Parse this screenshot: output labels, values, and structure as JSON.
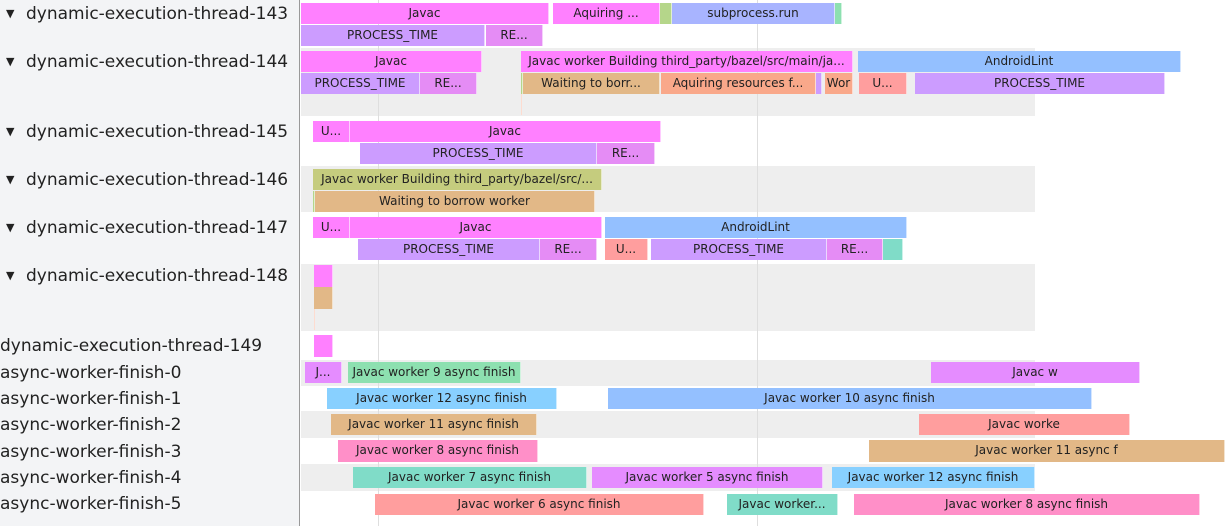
{
  "tracks": [
    {
      "label": "dynamic-execution-thread-143",
      "expandable": true
    },
    {
      "label": "dynamic-execution-thread-144",
      "expandable": true
    },
    {
      "label": "dynamic-execution-thread-145",
      "expandable": true
    },
    {
      "label": "dynamic-execution-thread-146",
      "expandable": true
    },
    {
      "label": "dynamic-execution-thread-147",
      "expandable": true
    },
    {
      "label": "dynamic-execution-thread-148",
      "expandable": true
    },
    {
      "label": "dynamic-execution-thread-149",
      "expandable": false
    },
    {
      "label": "async-worker-finish-0",
      "expandable": false
    },
    {
      "label": "async-worker-finish-1",
      "expandable": false
    },
    {
      "label": "async-worker-finish-2",
      "expandable": false
    },
    {
      "label": "async-worker-finish-3",
      "expandable": false
    },
    {
      "label": "async-worker-finish-4",
      "expandable": false
    },
    {
      "label": "async-worker-finish-5",
      "expandable": false
    }
  ],
  "expand_icon": "triangle-down-icon",
  "colors": {
    "pink": "#ff80ff",
    "purple": "#cc9cff",
    "magenta": "#e58cf5",
    "green": "#b5d68a",
    "blue": "#a8b4ff",
    "teal": "#8de0b0",
    "skyblue": "#94c0ff",
    "tan": "#e2b887",
    "salmon": "#f9a88a",
    "red": "#ff9e9e",
    "olive": "#c5cc7e",
    "cyan": "#80dcc8",
    "lightblue": "#88d0ff",
    "rose": "#ff8fc8",
    "violet": "#e58cff"
  },
  "slices": [
    {
      "label": "Javac",
      "color": "pink"
    },
    {
      "label": "Aquiring ...",
      "color": "pink"
    },
    {
      "label": "",
      "color": "green"
    },
    {
      "label": "subprocess.run",
      "color": "blue"
    },
    {
      "label": "",
      "color": "teal"
    },
    {
      "label": "PROCESS_TIME",
      "color": "purple"
    },
    {
      "label": "RE...",
      "color": "magenta"
    },
    {
      "label": "Javac",
      "color": "pink"
    },
    {
      "label": "Javac worker Building third_party/bazel/src/main/ja...",
      "color": "pink"
    },
    {
      "label": "AndroidLint",
      "color": "skyblue"
    },
    {
      "label": "PROCESS_TIME",
      "color": "purple"
    },
    {
      "label": "RE...",
      "color": "magenta"
    },
    {
      "label": "",
      "color": "green"
    },
    {
      "label": "Waiting to borr...",
      "color": "tan"
    },
    {
      "label": "Aquiring resources f...",
      "color": "salmon"
    },
    {
      "label": "",
      "color": "purple"
    },
    {
      "label": "Wor",
      "color": "salmon"
    },
    {
      "label": "U...",
      "color": "red"
    },
    {
      "label": "PROCESS_TIME",
      "color": "purple"
    },
    {
      "label": "",
      "color": "salmon"
    },
    {
      "label": "U...",
      "color": "pink"
    },
    {
      "label": "Javac",
      "color": "pink"
    },
    {
      "label": "PROCESS_TIME",
      "color": "purple"
    },
    {
      "label": "RE...",
      "color": "magenta"
    },
    {
      "label": "Javac worker Building third_party/bazel/src/...",
      "color": "olive"
    },
    {
      "label": "",
      "color": "green"
    },
    {
      "label": "Waiting to borrow worker",
      "color": "tan"
    },
    {
      "label": "U...",
      "color": "pink"
    },
    {
      "label": "Javac",
      "color": "pink"
    },
    {
      "label": "AndroidLint",
      "color": "skyblue"
    },
    {
      "label": "PROCESS_TIME",
      "color": "purple"
    },
    {
      "label": "RE...",
      "color": "magenta"
    },
    {
      "label": "U...",
      "color": "red"
    },
    {
      "label": "PROCESS_TIME",
      "color": "purple"
    },
    {
      "label": "RE...",
      "color": "magenta"
    },
    {
      "label": "",
      "color": "cyan"
    },
    {
      "label": "",
      "color": "pink"
    },
    {
      "label": "",
      "color": "tan"
    },
    {
      "label": "",
      "color": "salmon"
    },
    {
      "label": "",
      "color": "pink"
    },
    {
      "label": "J...",
      "color": "violet"
    },
    {
      "label": "Javac worker 9 async finish",
      "color": "teal"
    },
    {
      "label": "Javac w",
      "color": "violet"
    },
    {
      "label": "Javac worker 12 async finish",
      "color": "lightblue"
    },
    {
      "label": "Javac worker 10 async finish",
      "color": "skyblue"
    },
    {
      "label": "Javac worker 11 async finish",
      "color": "tan"
    },
    {
      "label": "Javac worke",
      "color": "red"
    },
    {
      "label": "Javac worker 8 async finish",
      "color": "rose"
    },
    {
      "label": "Javac worker 11 async f",
      "color": "tan"
    },
    {
      "label": "Javac worker 7 async finish",
      "color": "cyan"
    },
    {
      "label": "Javac worker 5 async finish",
      "color": "violet"
    },
    {
      "label": "Javac worker 12 async finish",
      "color": "lightblue"
    },
    {
      "label": "Javac worker 6 async finish",
      "color": "red"
    },
    {
      "label": "Javac worker...",
      "color": "cyan"
    },
    {
      "label": "Javac worker 8 async finish",
      "color": "rose"
    }
  ]
}
